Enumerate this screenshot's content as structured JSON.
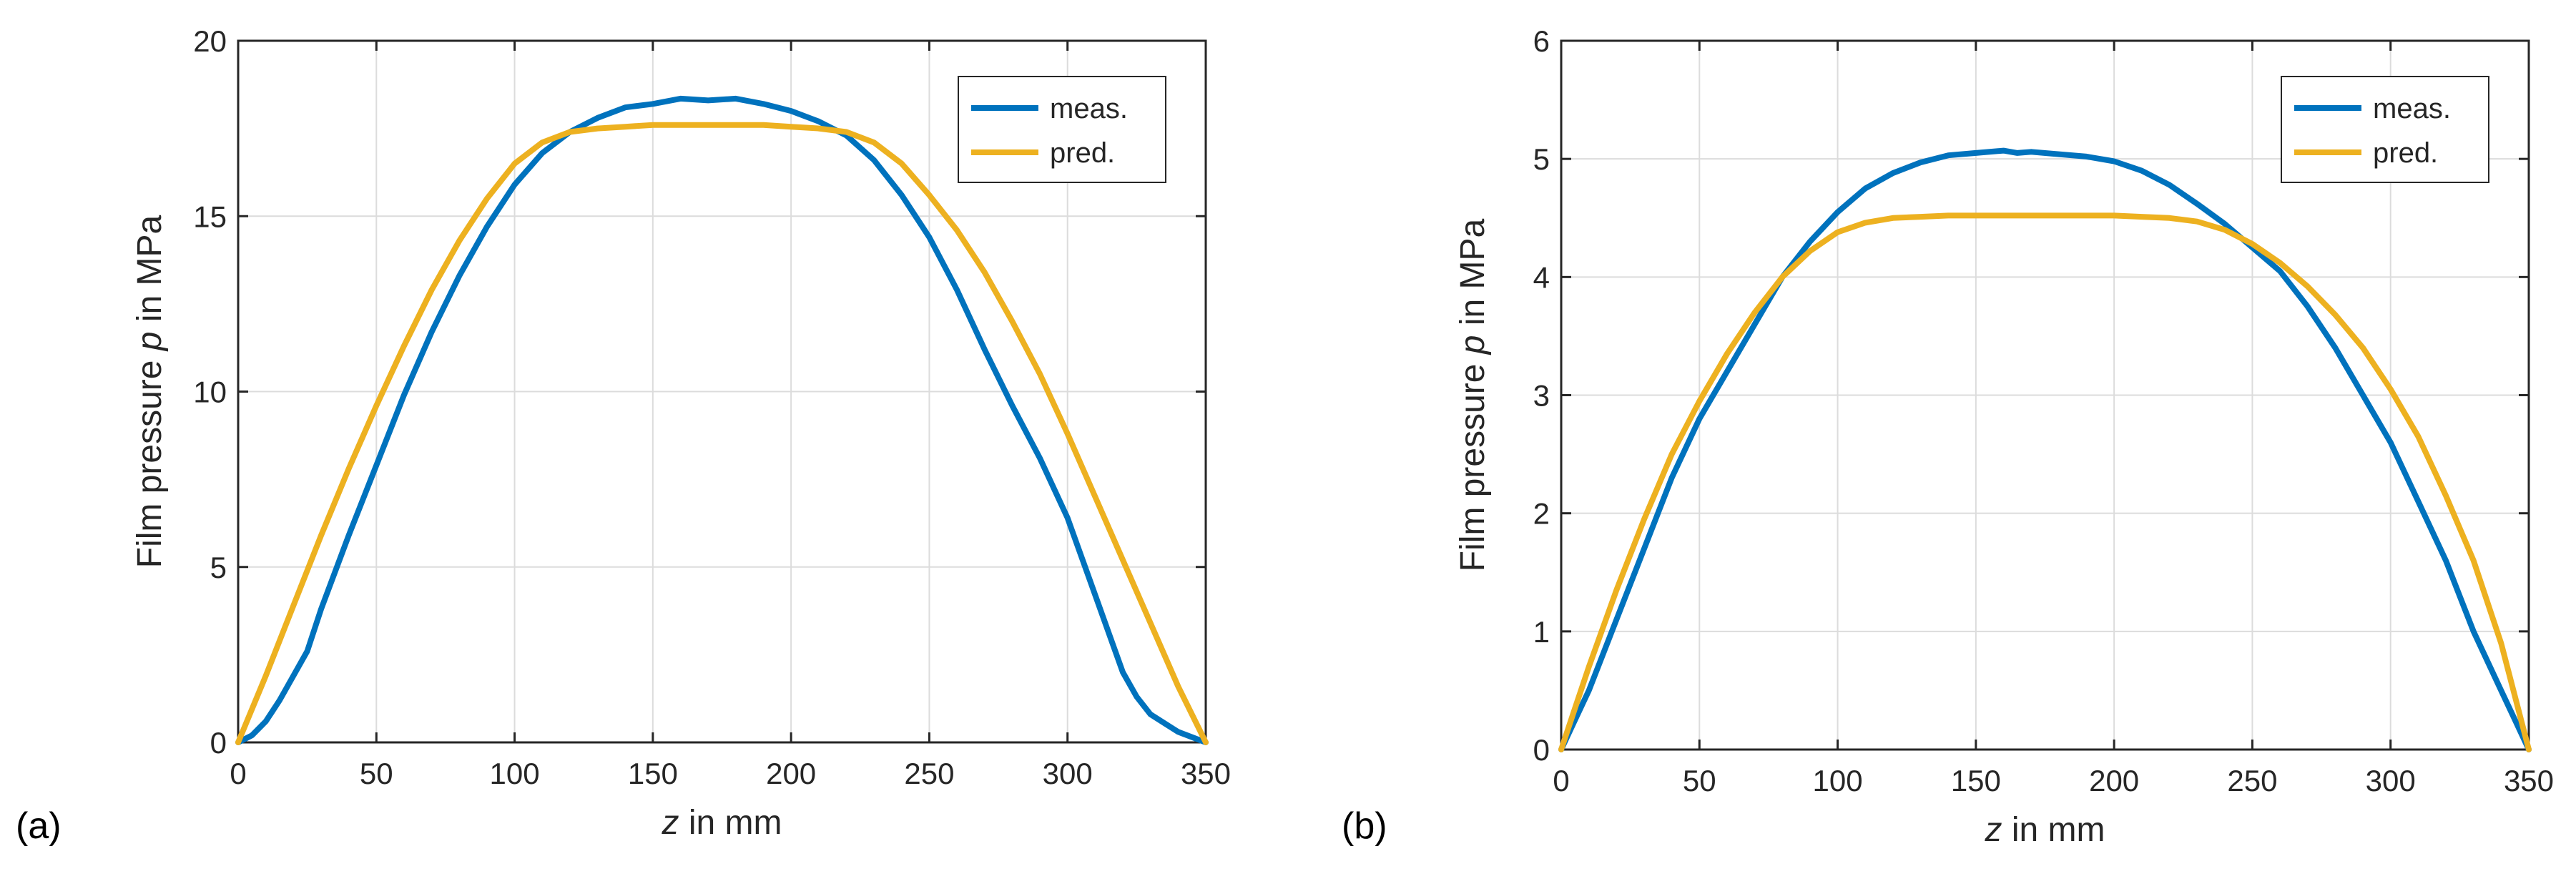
{
  "figure": {
    "panel_labels": [
      "(a)",
      "(b)"
    ]
  },
  "colors": {
    "meas": "#0072BD",
    "pred": "#EDB120",
    "grid": "#dcdcdc",
    "axis": "#262626"
  },
  "chart_data": [
    {
      "type": "line",
      "panel": "(a)",
      "title": "",
      "xlabel_italic": "z",
      "xlabel_rest": " in mm",
      "ylabel_plain": "Film pressure ",
      "ylabel_italic": "p",
      "ylabel_rest": " in MPa",
      "xlim": [
        0,
        350
      ],
      "ylim": [
        0,
        20
      ],
      "xticks": [
        0,
        50,
        100,
        150,
        200,
        250,
        300,
        350
      ],
      "yticks": [
        0,
        5,
        10,
        15,
        20
      ],
      "grid": true,
      "legend_position": "top-right",
      "series": [
        {
          "name": "meas.",
          "x": [
            0,
            5,
            10,
            15,
            20,
            25,
            30,
            40,
            50,
            60,
            70,
            80,
            90,
            100,
            110,
            120,
            130,
            140,
            150,
            160,
            170,
            180,
            190,
            200,
            210,
            220,
            230,
            240,
            250,
            260,
            270,
            280,
            290,
            300,
            310,
            320,
            325,
            330,
            340,
            350
          ],
          "y": [
            0,
            0.2,
            0.6,
            1.2,
            1.9,
            2.6,
            3.8,
            5.9,
            7.9,
            9.9,
            11.7,
            13.3,
            14.7,
            15.9,
            16.8,
            17.4,
            17.8,
            18.1,
            18.2,
            18.35,
            18.3,
            18.35,
            18.2,
            18.0,
            17.7,
            17.3,
            16.6,
            15.6,
            14.4,
            12.9,
            11.2,
            9.6,
            8.1,
            6.4,
            4.2,
            2.0,
            1.3,
            0.8,
            0.3,
            0
          ]
        },
        {
          "name": "pred.",
          "x": [
            0,
            10,
            20,
            30,
            40,
            50,
            60,
            70,
            80,
            90,
            100,
            110,
            120,
            130,
            140,
            150,
            160,
            170,
            180,
            190,
            200,
            210,
            220,
            230,
            240,
            250,
            260,
            270,
            280,
            290,
            300,
            310,
            320,
            330,
            340,
            350
          ],
          "y": [
            0,
            1.9,
            3.9,
            5.9,
            7.8,
            9.6,
            11.3,
            12.9,
            14.3,
            15.5,
            16.5,
            17.1,
            17.4,
            17.5,
            17.55,
            17.6,
            17.6,
            17.6,
            17.6,
            17.6,
            17.55,
            17.5,
            17.4,
            17.1,
            16.5,
            15.6,
            14.6,
            13.4,
            12.0,
            10.5,
            8.8,
            7.0,
            5.2,
            3.4,
            1.6,
            0
          ]
        }
      ]
    },
    {
      "type": "line",
      "panel": "(b)",
      "title": "",
      "xlabel_italic": "z",
      "xlabel_rest": " in mm",
      "ylabel_plain": "Film pressure ",
      "ylabel_italic": "p",
      "ylabel_rest": " in MPa",
      "xlim": [
        0,
        350
      ],
      "ylim": [
        0,
        6
      ],
      "xticks": [
        0,
        50,
        100,
        150,
        200,
        250,
        300,
        350
      ],
      "yticks": [
        0,
        1,
        2,
        3,
        4,
        5,
        6
      ],
      "grid": true,
      "legend_position": "top-right",
      "series": [
        {
          "name": "meas.",
          "x": [
            0,
            5,
            10,
            20,
            30,
            40,
            50,
            60,
            70,
            80,
            90,
            100,
            110,
            120,
            130,
            140,
            150,
            160,
            165,
            170,
            180,
            190,
            200,
            210,
            220,
            230,
            240,
            250,
            260,
            270,
            280,
            290,
            300,
            310,
            320,
            330,
            340,
            345,
            350
          ],
          "y": [
            0,
            0.25,
            0.5,
            1.1,
            1.7,
            2.3,
            2.8,
            3.2,
            3.6,
            4.0,
            4.3,
            4.55,
            4.75,
            4.88,
            4.97,
            5.03,
            5.05,
            5.07,
            5.05,
            5.06,
            5.04,
            5.02,
            4.98,
            4.9,
            4.78,
            4.62,
            4.45,
            4.25,
            4.05,
            3.75,
            3.4,
            3.0,
            2.6,
            2.1,
            1.6,
            1.0,
            0.5,
            0.25,
            0
          ]
        },
        {
          "name": "pred.",
          "x": [
            0,
            5,
            10,
            20,
            30,
            40,
            50,
            60,
            70,
            80,
            90,
            100,
            110,
            120,
            130,
            140,
            150,
            160,
            170,
            180,
            190,
            200,
            210,
            220,
            230,
            240,
            250,
            260,
            270,
            280,
            290,
            300,
            310,
            320,
            330,
            340,
            350
          ],
          "y": [
            0,
            0.35,
            0.7,
            1.35,
            1.95,
            2.5,
            2.95,
            3.35,
            3.7,
            4.0,
            4.22,
            4.38,
            4.46,
            4.5,
            4.51,
            4.52,
            4.52,
            4.52,
            4.52,
            4.52,
            4.52,
            4.52,
            4.51,
            4.5,
            4.47,
            4.4,
            4.28,
            4.12,
            3.92,
            3.68,
            3.4,
            3.05,
            2.65,
            2.15,
            1.6,
            0.9,
            0
          ]
        }
      ]
    }
  ]
}
